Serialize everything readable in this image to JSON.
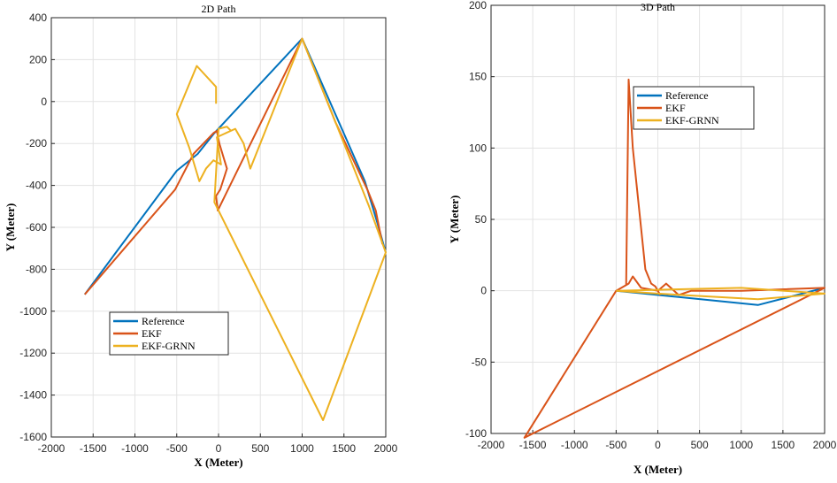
{
  "colors": {
    "Reference": "#0072BD",
    "EKF": "#D95319",
    "EKF-GRNN": "#EDB120"
  },
  "chart_data": [
    {
      "type": "line",
      "title": "2D Path",
      "xlabel": "X (Meter)",
      "ylabel": "Y (Meter)",
      "xlim": [
        -2000,
        2000
      ],
      "ylim": [
        -1600,
        400
      ],
      "xticks": [
        "-2000",
        "-1500",
        "-1000",
        "-500",
        "0",
        "500",
        "1000",
        "1500",
        "2000"
      ],
      "yticks": [
        "400",
        "200",
        "0",
        "-200",
        "-400",
        "-600",
        "-800",
        "-1000",
        "-1200",
        "-1400",
        "-1600"
      ],
      "grid": true,
      "legend": "lower-left",
      "series": [
        {
          "name": "Reference",
          "x": [
            -1600,
            -500,
            -250,
            -50,
            1000,
            1750,
            1900,
            2000
          ],
          "y": [
            -920,
            -330,
            -250,
            -150,
            300,
            -380,
            -580,
            -720
          ]
        },
        {
          "name": "EKF",
          "x": [
            -1600,
            -520,
            -300,
            -180,
            -60,
            -20,
            10,
            100,
            60,
            20,
            -30,
            -10,
            1000,
            1400,
            1780,
            1880,
            1960
          ],
          "y": [
            -920,
            -420,
            -250,
            -200,
            -150,
            -140,
            -200,
            -320,
            -370,
            -420,
            -450,
            -520,
            300,
            -100,
            -420,
            -520,
            -680
          ]
        },
        {
          "name": "EKF-GRNN",
          "x": [
            -30,
            -30,
            -260,
            -500,
            -350,
            -230,
            -150,
            -60,
            30,
            -20,
            200,
            300,
            380,
            700,
            1000,
            1500,
            1800,
            2000,
            1250,
            -50,
            0,
            100,
            150
          ],
          "y": [
            -10,
            70,
            170,
            -60,
            -220,
            -380,
            -320,
            -280,
            -300,
            -170,
            -130,
            -200,
            -320,
            0,
            300,
            -200,
            -500,
            -720,
            -1520,
            -480,
            -130,
            -120,
            -140
          ]
        }
      ]
    },
    {
      "type": "line",
      "title": "3D Path",
      "xlabel": "X (Meter)",
      "ylabel": "Y (Meter)",
      "xlim": [
        -2000,
        2000
      ],
      "ylim": [
        -100,
        200
      ],
      "xticks": [
        "-2000",
        "-1500",
        "-1000",
        "-500",
        "0",
        "500",
        "1000",
        "1500",
        "2000"
      ],
      "yticks": [
        "200",
        "150",
        "100",
        "50",
        "0",
        "-50",
        "-100"
      ],
      "grid": true,
      "legend": "upper-center",
      "series": [
        {
          "name": "Reference",
          "x": [
            -500,
            1200,
            2000
          ],
          "y": [
            0,
            -10,
            2
          ]
        },
        {
          "name": "EKF",
          "x": [
            -500,
            -350,
            -300,
            -200,
            0,
            100,
            250,
            400,
            1000,
            2000,
            -1600,
            -500,
            -380,
            -350,
            -300,
            -150,
            -80,
            -30,
            0,
            30
          ],
          "y": [
            0,
            5,
            10,
            2,
            0,
            5,
            -3,
            0,
            0,
            2,
            -103,
            0,
            4,
            148,
            100,
            15,
            5,
            3,
            0,
            -3
          ]
        },
        {
          "name": "EKF-GRNN",
          "x": [
            -500,
            1000,
            2000,
            1200,
            0,
            -500
          ],
          "y": [
            0,
            2,
            -2,
            -6,
            -2,
            0
          ]
        }
      ]
    }
  ]
}
